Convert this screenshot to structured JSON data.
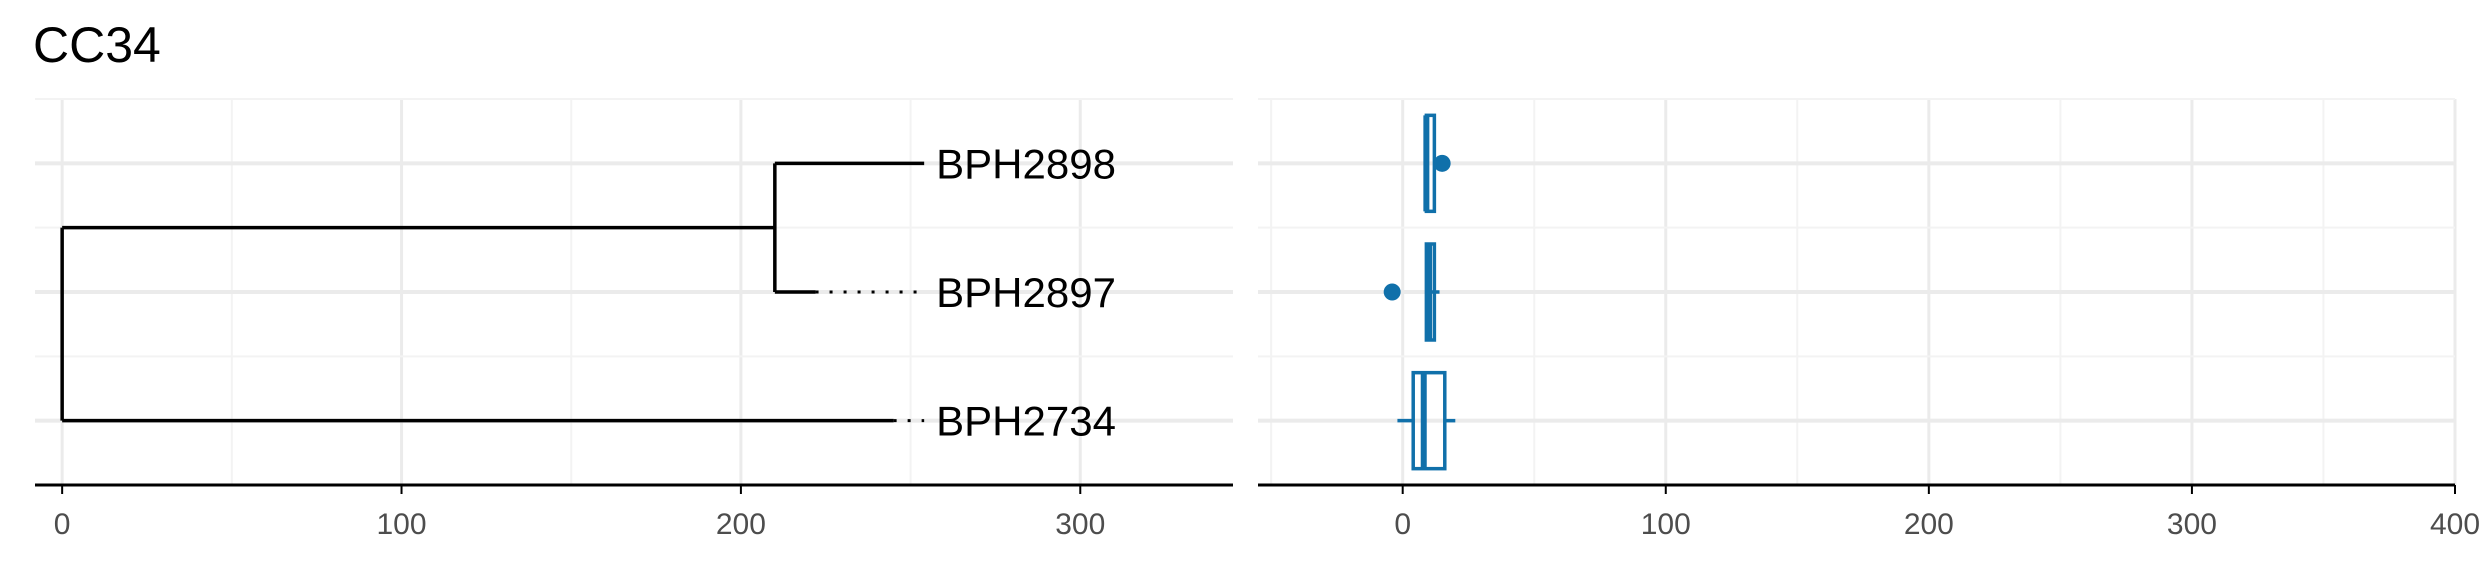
{
  "title": "CC34",
  "colors": {
    "tree": "#000000",
    "box": "#1070aa",
    "grid_major": "#ebebeb",
    "grid_minor": "#f3f3f3",
    "axis": "#000000",
    "tick_text": "#4d4d4d"
  },
  "chart_data": [
    {
      "type": "dendrogram",
      "title": "CC34",
      "xlim": [
        -8,
        345
      ],
      "x_ticks": [
        0,
        100,
        200,
        300
      ],
      "x_tick_labels": [
        "0",
        "100",
        "200",
        "300"
      ],
      "grid": true,
      "leaves": [
        {
          "label": "BPH2898",
          "row": 3,
          "x": 254,
          "dotted_from": 254
        },
        {
          "label": "BPH2897",
          "row": 2,
          "x": 254,
          "dotted_from": 222
        },
        {
          "label": "BPH2734",
          "row": 1,
          "x": 254,
          "dotted_from": 245
        }
      ],
      "nodes": [
        {
          "name": "root",
          "x": 0,
          "children_rows": [
            1,
            2.5
          ]
        },
        {
          "name": "inner",
          "x": 210,
          "children_rows": [
            2,
            3
          ]
        }
      ]
    },
    {
      "type": "boxplot",
      "xlim": [
        -55,
        400
      ],
      "x_ticks": [
        0,
        100,
        200,
        300,
        400
      ],
      "x_tick_labels": [
        "0",
        "100",
        "200",
        "300",
        "400"
      ],
      "grid": true,
      "series": [
        {
          "row": 3,
          "min": 9,
          "q1": 9,
          "median": 9,
          "q3": 10,
          "max": 10,
          "outliers": [
            15
          ]
        },
        {
          "row": 2,
          "min": 9,
          "q1": 9,
          "median": 10,
          "q3": 11,
          "max": 14,
          "outliers": [
            -4
          ]
        },
        {
          "row": 1,
          "min": -2,
          "q1": 4,
          "median": 8,
          "q3": 16,
          "max": 20,
          "outliers": []
        }
      ]
    }
  ]
}
